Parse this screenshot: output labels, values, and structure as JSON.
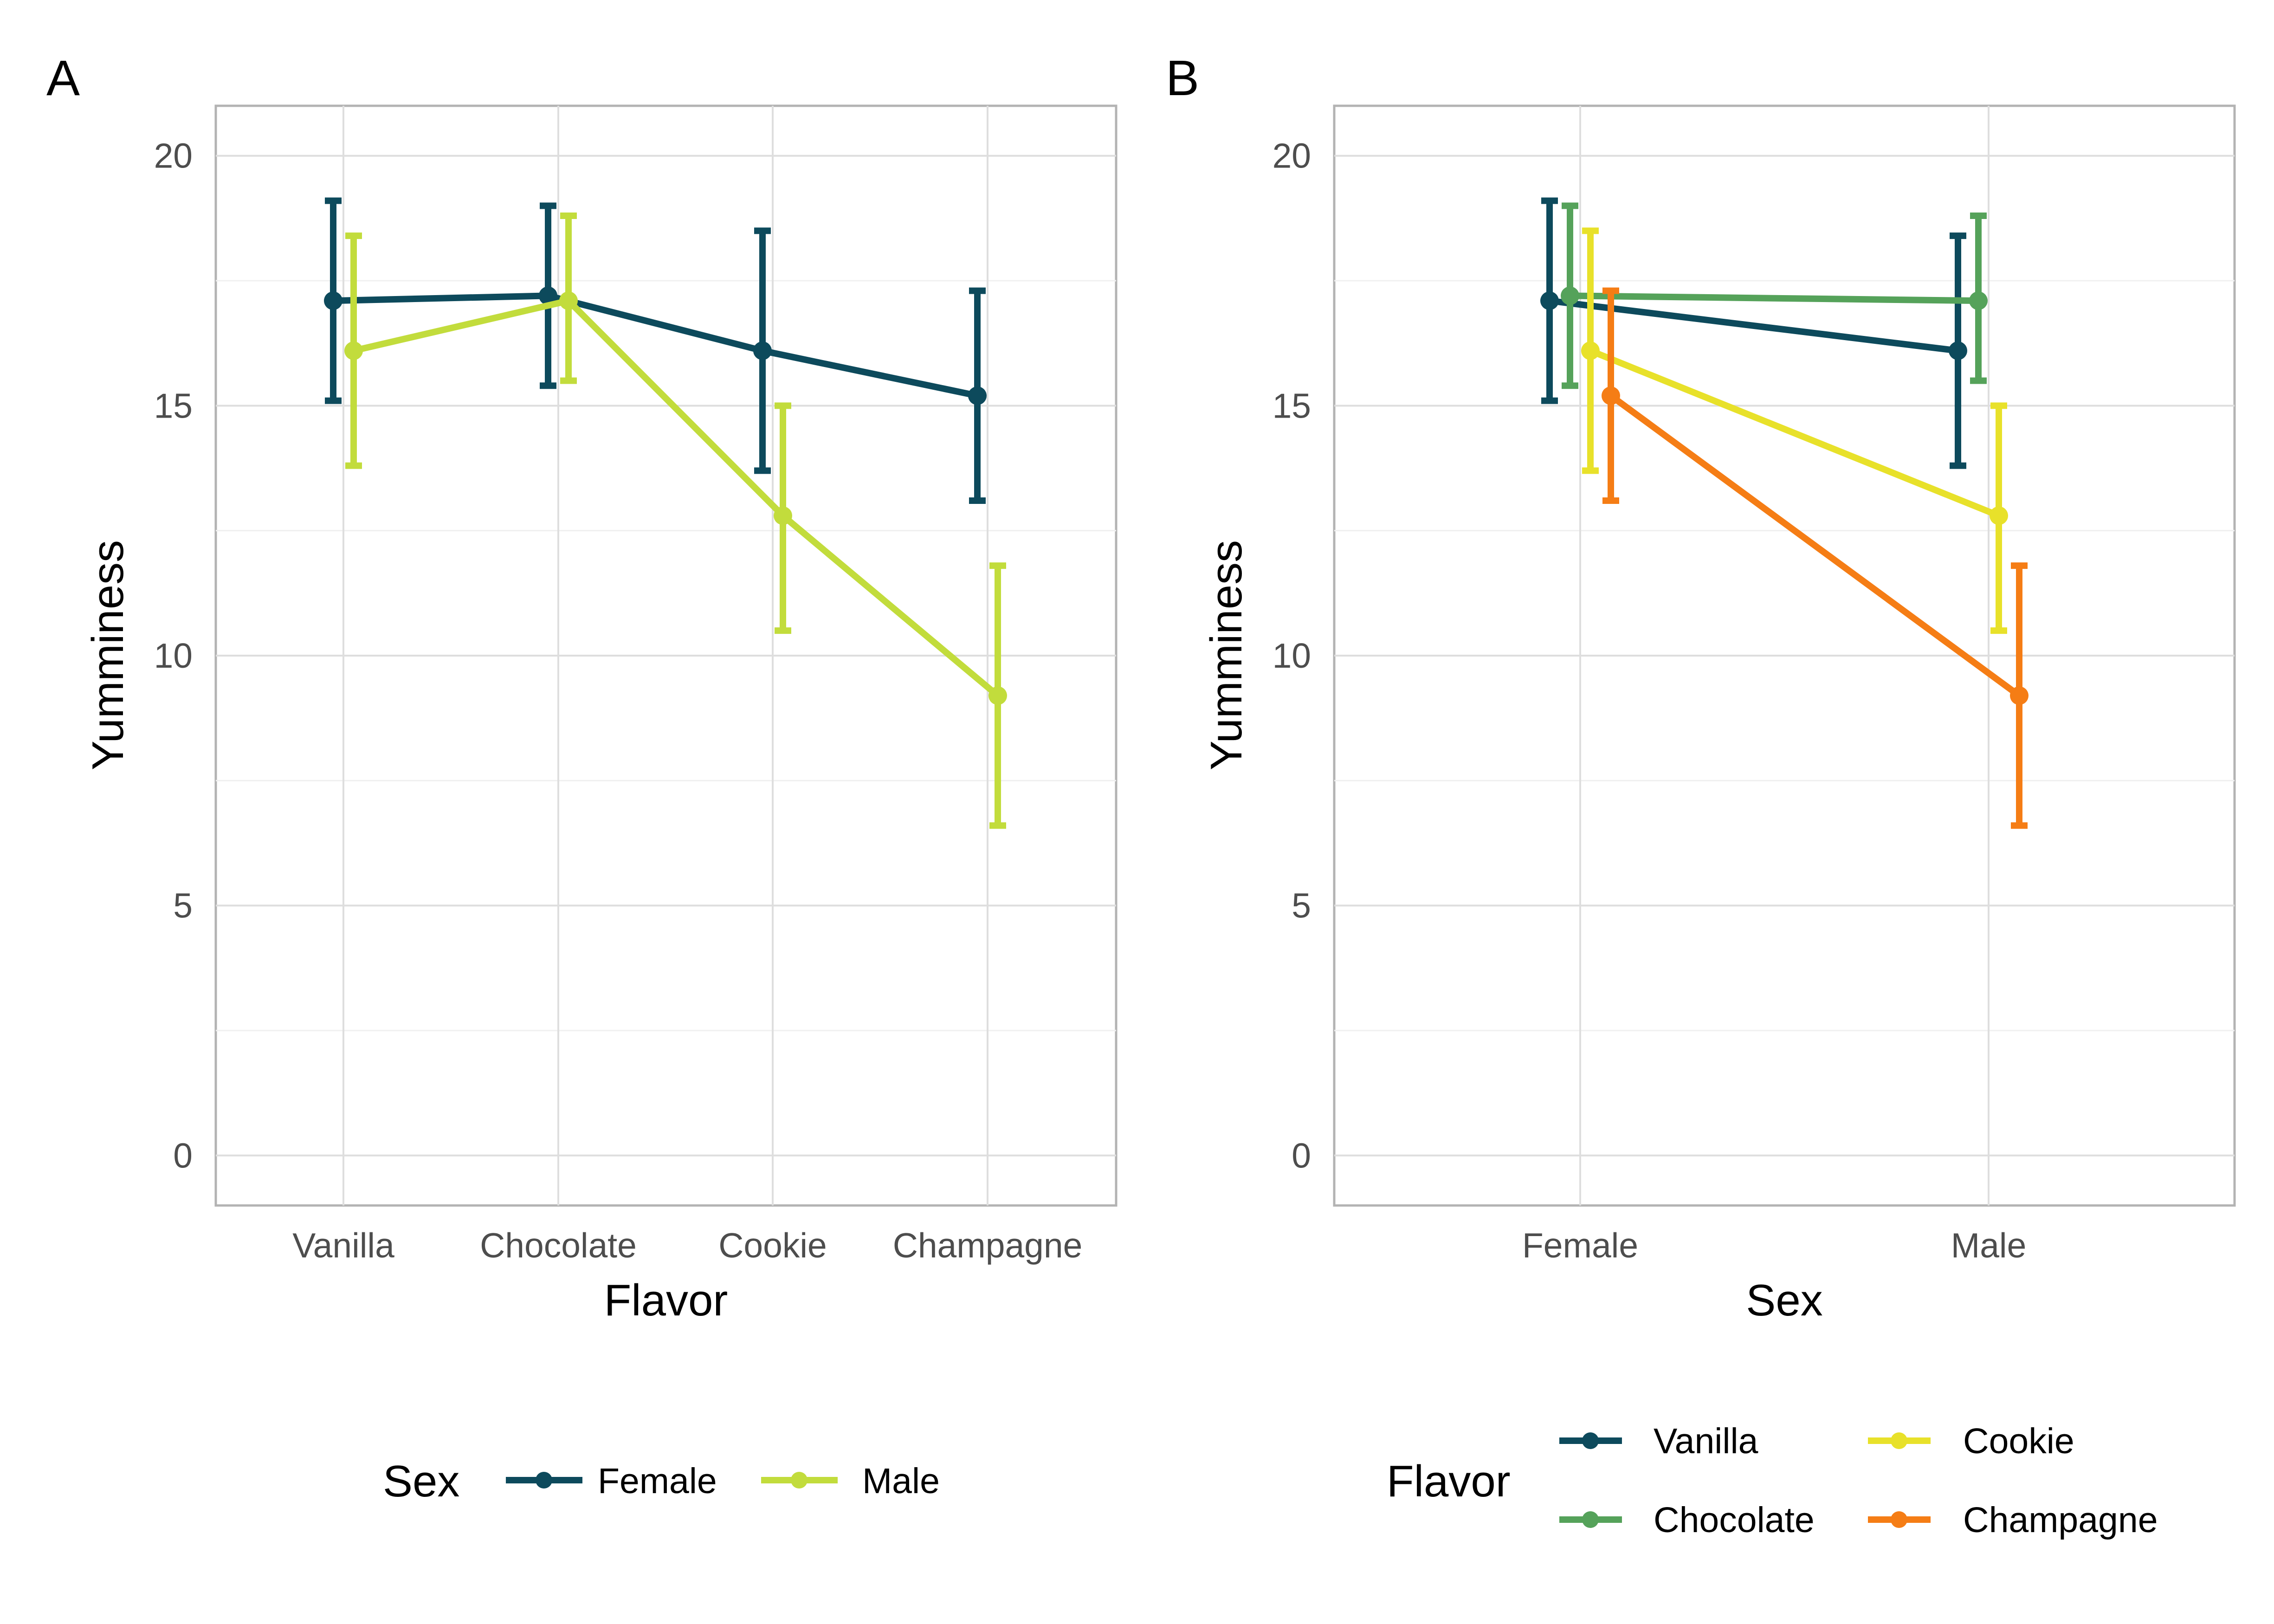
{
  "chart_data": [
    {
      "panel_tag": "A",
      "type": "line",
      "xlabel": "Flavor",
      "ylabel": "Yumminess",
      "categories": [
        "Vanilla",
        "Chocolate",
        "Cookie",
        "Champagne"
      ],
      "ylim": [
        -1,
        21
      ],
      "yticks": [
        "0",
        "5",
        "10",
        "15",
        "20"
      ],
      "error_bars": true,
      "grid": true,
      "legend": {
        "title": "Sex",
        "position": "bottom",
        "labels": [
          "Female",
          "Male"
        ]
      },
      "series": [
        {
          "name": "Female",
          "color": "#0d4a5c",
          "values": [
            17.1,
            17.2,
            16.1,
            15.2
          ],
          "lower": [
            15.1,
            15.4,
            13.7,
            13.1
          ],
          "upper": [
            19.1,
            19.0,
            18.5,
            17.3
          ]
        },
        {
          "name": "Male",
          "color": "#c2dc3c",
          "values": [
            16.1,
            17.1,
            12.8,
            9.2
          ],
          "lower": [
            13.8,
            15.5,
            10.5,
            6.6
          ],
          "upper": [
            18.4,
            18.8,
            15.0,
            11.8
          ]
        }
      ]
    },
    {
      "panel_tag": "B",
      "type": "line",
      "xlabel": "Sex",
      "ylabel": "Yumminess",
      "categories": [
        "Female",
        "Male"
      ],
      "ylim": [
        -1,
        21
      ],
      "yticks": [
        "0",
        "5",
        "10",
        "15",
        "20"
      ],
      "error_bars": true,
      "grid": true,
      "legend": {
        "title": "Flavor",
        "position": "bottom",
        "labels": [
          "Vanilla",
          "Chocolate",
          "Cookie",
          "Champagne"
        ]
      },
      "series": [
        {
          "name": "Vanilla",
          "color": "#0d4a5c",
          "values": [
            17.1,
            16.1
          ],
          "lower": [
            15.1,
            13.8
          ],
          "upper": [
            19.1,
            18.4
          ]
        },
        {
          "name": "Chocolate",
          "color": "#55a25a",
          "values": [
            17.2,
            17.1
          ],
          "lower": [
            15.4,
            15.5
          ],
          "upper": [
            19.0,
            18.8
          ]
        },
        {
          "name": "Cookie",
          "color": "#e8e12a",
          "values": [
            16.1,
            12.8
          ],
          "lower": [
            13.7,
            10.5
          ],
          "upper": [
            18.5,
            15.0
          ]
        },
        {
          "name": "Champagne",
          "color": "#f57d15",
          "values": [
            15.2,
            9.2
          ],
          "lower": [
            13.1,
            6.6
          ],
          "upper": [
            17.3,
            11.8
          ]
        }
      ]
    }
  ]
}
